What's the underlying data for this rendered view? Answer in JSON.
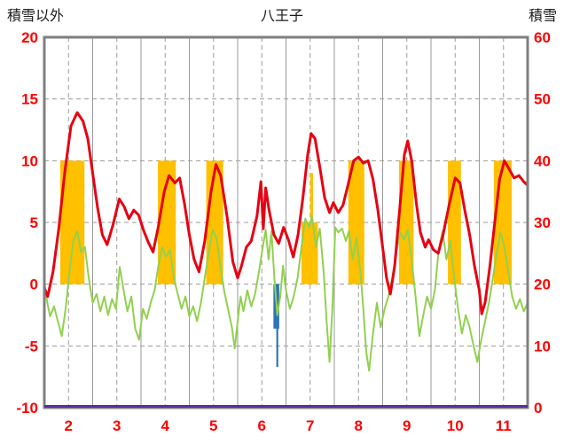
{
  "header": {
    "left_label": "積雪以外",
    "title": "八王子",
    "right_label": "積雪"
  },
  "colors": {
    "axis_text": "#ff0000",
    "grid": "#9a9a9a",
    "frame": "#7f7f7f",
    "red_line": "#e60012",
    "green_line": "#92d050",
    "orange_bar": "#ffc000",
    "blue_bar": "#2e75b6",
    "snow_line": "#5a2ca0",
    "background": "#ffffff"
  },
  "chart_data": {
    "type": "line",
    "title": "八王子",
    "left_axis": {
      "label": "積雪以外",
      "ticks": [
        20,
        15,
        10,
        5,
        0,
        -5,
        -10
      ],
      "range": [
        -10,
        20
      ]
    },
    "right_axis": {
      "label": "積雪",
      "ticks": [
        60,
        50,
        40,
        30,
        20,
        10,
        0
      ],
      "range": [
        0,
        60
      ]
    },
    "x_axis": {
      "ticks": [
        2,
        3,
        4,
        5,
        6,
        7,
        8,
        9,
        10,
        11
      ],
      "range": [
        2,
        12
      ]
    },
    "grid": true,
    "legend": "none",
    "series": [
      {
        "name": "red-line",
        "axis": "left",
        "width": 3,
        "points": [
          [
            2.0,
            -0.3
          ],
          [
            2.07,
            -1.0
          ],
          [
            2.18,
            1.0
          ],
          [
            2.3,
            4.5
          ],
          [
            2.42,
            9.0
          ],
          [
            2.55,
            12.8
          ],
          [
            2.68,
            13.9
          ],
          [
            2.8,
            13.2
          ],
          [
            2.9,
            11.8
          ],
          [
            3.0,
            9.0
          ],
          [
            3.1,
            6.2
          ],
          [
            3.2,
            4.0
          ],
          [
            3.3,
            3.2
          ],
          [
            3.42,
            4.8
          ],
          [
            3.55,
            6.9
          ],
          [
            3.65,
            6.3
          ],
          [
            3.75,
            5.3
          ],
          [
            3.85,
            6.0
          ],
          [
            3.95,
            5.6
          ],
          [
            4.05,
            4.4
          ],
          [
            4.15,
            3.4
          ],
          [
            4.25,
            2.6
          ],
          [
            4.35,
            4.5
          ],
          [
            4.48,
            7.5
          ],
          [
            4.58,
            8.8
          ],
          [
            4.7,
            8.2
          ],
          [
            4.8,
            8.6
          ],
          [
            4.9,
            6.5
          ],
          [
            5.0,
            4.0
          ],
          [
            5.1,
            2.0
          ],
          [
            5.2,
            1.0
          ],
          [
            5.32,
            3.5
          ],
          [
            5.45,
            7.5
          ],
          [
            5.55,
            9.7
          ],
          [
            5.65,
            8.8
          ],
          [
            5.78,
            5.5
          ],
          [
            5.9,
            1.8
          ],
          [
            6.0,
            0.5
          ],
          [
            6.08,
            1.5
          ],
          [
            6.18,
            3.0
          ],
          [
            6.28,
            3.5
          ],
          [
            6.4,
            5.5
          ],
          [
            6.48,
            8.3
          ],
          [
            6.53,
            4.5
          ],
          [
            6.58,
            7.8
          ],
          [
            6.65,
            6.0
          ],
          [
            6.75,
            4.0
          ],
          [
            6.85,
            3.3
          ],
          [
            6.95,
            4.6
          ],
          [
            7.05,
            3.6
          ],
          [
            7.15,
            2.2
          ],
          [
            7.25,
            4.0
          ],
          [
            7.35,
            7.0
          ],
          [
            7.45,
            10.5
          ],
          [
            7.52,
            12.2
          ],
          [
            7.6,
            11.8
          ],
          [
            7.7,
            9.5
          ],
          [
            7.8,
            7.0
          ],
          [
            7.9,
            5.8
          ],
          [
            7.98,
            6.6
          ],
          [
            8.08,
            5.8
          ],
          [
            8.18,
            6.4
          ],
          [
            8.28,
            8.0
          ],
          [
            8.4,
            10.0
          ],
          [
            8.5,
            10.3
          ],
          [
            8.6,
            9.8
          ],
          [
            8.7,
            10.0
          ],
          [
            8.8,
            8.5
          ],
          [
            8.9,
            6.0
          ],
          [
            9.0,
            3.0
          ],
          [
            9.08,
            0.5
          ],
          [
            9.16,
            -0.8
          ],
          [
            9.25,
            1.5
          ],
          [
            9.35,
            6.0
          ],
          [
            9.45,
            10.5
          ],
          [
            9.52,
            11.6
          ],
          [
            9.6,
            10.0
          ],
          [
            9.7,
            6.5
          ],
          [
            9.78,
            4.2
          ],
          [
            9.88,
            3.0
          ],
          [
            9.95,
            3.6
          ],
          [
            10.05,
            2.8
          ],
          [
            10.15,
            2.5
          ],
          [
            10.25,
            4.0
          ],
          [
            10.38,
            6.5
          ],
          [
            10.5,
            8.6
          ],
          [
            10.6,
            8.2
          ],
          [
            10.7,
            6.0
          ],
          [
            10.8,
            4.0
          ],
          [
            10.9,
            1.5
          ],
          [
            11.0,
            -0.5
          ],
          [
            11.05,
            -2.4
          ],
          [
            11.12,
            -1.5
          ],
          [
            11.22,
            1.5
          ],
          [
            11.32,
            5.0
          ],
          [
            11.42,
            8.5
          ],
          [
            11.52,
            10.0
          ],
          [
            11.62,
            9.3
          ],
          [
            11.72,
            8.6
          ],
          [
            11.82,
            8.8
          ],
          [
            11.92,
            8.3
          ],
          [
            12.0,
            8.0
          ]
        ]
      },
      {
        "name": "green-line",
        "axis": "left",
        "width": 2,
        "points": [
          [
            2.0,
            0.2
          ],
          [
            2.06,
            -1.5
          ],
          [
            2.12,
            -2.6
          ],
          [
            2.2,
            -1.8
          ],
          [
            2.28,
            -3.0
          ],
          [
            2.36,
            -4.2
          ],
          [
            2.44,
            -2.0
          ],
          [
            2.52,
            1.0
          ],
          [
            2.6,
            3.5
          ],
          [
            2.68,
            4.3
          ],
          [
            2.76,
            2.6
          ],
          [
            2.84,
            3.0
          ],
          [
            2.92,
            0.5
          ],
          [
            3.0,
            -1.5
          ],
          [
            3.08,
            -0.8
          ],
          [
            3.16,
            -2.2
          ],
          [
            3.24,
            -1.0
          ],
          [
            3.32,
            -2.5
          ],
          [
            3.4,
            -1.2
          ],
          [
            3.48,
            -2.0
          ],
          [
            3.56,
            1.4
          ],
          [
            3.64,
            -0.5
          ],
          [
            3.72,
            -2.2
          ],
          [
            3.8,
            -1.0
          ],
          [
            3.88,
            -3.6
          ],
          [
            3.96,
            -4.5
          ],
          [
            4.04,
            -2.0
          ],
          [
            4.12,
            -2.8
          ],
          [
            4.2,
            -1.5
          ],
          [
            4.28,
            -0.5
          ],
          [
            4.36,
            1.5
          ],
          [
            4.44,
            3.0
          ],
          [
            4.52,
            2.2
          ],
          [
            4.6,
            2.8
          ],
          [
            4.68,
            0.5
          ],
          [
            4.76,
            -0.8
          ],
          [
            4.84,
            -2.0
          ],
          [
            4.92,
            -1.0
          ],
          [
            5.0,
            -2.6
          ],
          [
            5.08,
            -1.8
          ],
          [
            5.16,
            -3.0
          ],
          [
            5.24,
            -1.5
          ],
          [
            5.32,
            0.5
          ],
          [
            5.4,
            2.5
          ],
          [
            5.48,
            4.4
          ],
          [
            5.56,
            3.8
          ],
          [
            5.64,
            1.5
          ],
          [
            5.72,
            -0.5
          ],
          [
            5.8,
            -2.0
          ],
          [
            5.88,
            -3.5
          ],
          [
            5.94,
            -5.2
          ],
          [
            6.0,
            -3.0
          ],
          [
            6.06,
            -1.0
          ],
          [
            6.12,
            -2.2
          ],
          [
            6.2,
            -0.5
          ],
          [
            6.28,
            -1.8
          ],
          [
            6.36,
            -0.8
          ],
          [
            6.44,
            1.0
          ],
          [
            6.52,
            3.0
          ],
          [
            6.58,
            4.4
          ],
          [
            6.64,
            2.0
          ],
          [
            6.7,
            4.3
          ],
          [
            6.76,
            0.5
          ],
          [
            6.82,
            -2.5
          ],
          [
            6.88,
            -1.0
          ],
          [
            6.94,
            1.5
          ],
          [
            7.0,
            -0.5
          ],
          [
            7.08,
            -2.0
          ],
          [
            7.16,
            -1.0
          ],
          [
            7.24,
            0.5
          ],
          [
            7.32,
            3.0
          ],
          [
            7.4,
            5.3
          ],
          [
            7.48,
            4.6
          ],
          [
            7.54,
            5.5
          ],
          [
            7.62,
            3.0
          ],
          [
            7.7,
            4.5
          ],
          [
            7.78,
            1.0
          ],
          [
            7.84,
            -3.0
          ],
          [
            7.9,
            -6.3
          ],
          [
            7.96,
            -2.0
          ],
          [
            8.02,
            4.6
          ],
          [
            8.08,
            4.2
          ],
          [
            8.16,
            4.5
          ],
          [
            8.24,
            3.5
          ],
          [
            8.3,
            4.3
          ],
          [
            8.38,
            2.0
          ],
          [
            8.46,
            3.8
          ],
          [
            8.54,
            1.0
          ],
          [
            8.6,
            -2.0
          ],
          [
            8.66,
            -5.5
          ],
          [
            8.72,
            -7.0
          ],
          [
            8.8,
            -4.0
          ],
          [
            8.88,
            -1.5
          ],
          [
            8.96,
            -3.5
          ],
          [
            9.04,
            -2.0
          ],
          [
            9.12,
            -1.0
          ],
          [
            9.2,
            0.5
          ],
          [
            9.28,
            2.5
          ],
          [
            9.36,
            4.2
          ],
          [
            9.44,
            3.6
          ],
          [
            9.52,
            4.4
          ],
          [
            9.6,
            2.0
          ],
          [
            9.68,
            -1.0
          ],
          [
            9.76,
            -4.2
          ],
          [
            9.84,
            -2.5
          ],
          [
            9.92,
            -1.0
          ],
          [
            10.0,
            -2.0
          ],
          [
            10.08,
            -0.5
          ],
          [
            10.16,
            2.8
          ],
          [
            10.24,
            4.3
          ],
          [
            10.32,
            2.0
          ],
          [
            10.4,
            3.5
          ],
          [
            10.48,
            0.5
          ],
          [
            10.56,
            -2.0
          ],
          [
            10.64,
            -4.0
          ],
          [
            10.72,
            -2.5
          ],
          [
            10.8,
            -3.5
          ],
          [
            10.88,
            -5.0
          ],
          [
            10.96,
            -6.3
          ],
          [
            11.04,
            -4.5
          ],
          [
            11.12,
            -3.0
          ],
          [
            11.2,
            -1.5
          ],
          [
            11.28,
            0.5
          ],
          [
            11.36,
            2.5
          ],
          [
            11.44,
            4.2
          ],
          [
            11.52,
            3.0
          ],
          [
            11.6,
            1.0
          ],
          [
            11.68,
            -1.0
          ],
          [
            11.76,
            -2.0
          ],
          [
            11.84,
            -1.2
          ],
          [
            11.92,
            -2.2
          ],
          [
            12.0,
            -1.5
          ]
        ]
      },
      {
        "name": "snow-line",
        "axis": "right",
        "width": 3,
        "points": [
          [
            2.0,
            0
          ],
          [
            12.0,
            0
          ]
        ]
      }
    ],
    "bars": [
      {
        "name": "orange-bars",
        "axis": "left",
        "items": [
          {
            "start": 2.33,
            "end": 2.83,
            "value": 10
          },
          {
            "start": 4.35,
            "end": 4.72,
            "value": 10
          },
          {
            "start": 5.35,
            "end": 5.7,
            "value": 10
          },
          {
            "start": 7.32,
            "end": 7.66,
            "value": 5
          },
          {
            "start": 7.5,
            "end": 7.56,
            "value": 9
          },
          {
            "start": 8.29,
            "end": 8.62,
            "value": 10
          },
          {
            "start": 9.34,
            "end": 9.64,
            "value": 10
          },
          {
            "start": 10.35,
            "end": 10.62,
            "value": 10
          },
          {
            "start": 11.3,
            "end": 11.67,
            "value": 10
          }
        ]
      },
      {
        "name": "blue-bars",
        "axis": "left",
        "items": [
          {
            "start": 6.74,
            "end": 6.86,
            "value": -3.6
          },
          {
            "start": 6.8,
            "end": 6.84,
            "value": -6.7
          }
        ]
      }
    ]
  }
}
